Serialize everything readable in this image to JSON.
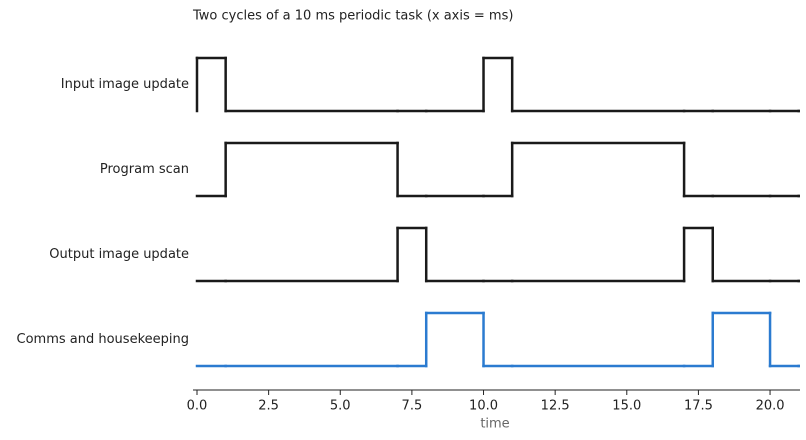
{
  "chart_data": {
    "type": "timing",
    "title": "Two cycles of a 10 ms periodic task (x axis = ms)",
    "x_label": "time",
    "x": [
      0,
      1,
      7,
      8,
      10,
      11,
      17,
      18,
      20,
      21
    ],
    "series": [
      {
        "name": "Input image update",
        "color": "#1a1a1a",
        "values": [
          1,
          0,
          0,
          0,
          1,
          0,
          0,
          0,
          0,
          0
        ]
      },
      {
        "name": "Program scan",
        "color": "#1a1a1a",
        "values": [
          0,
          1,
          0,
          0,
          0,
          1,
          0,
          0,
          0,
          0
        ]
      },
      {
        "name": "Output image update",
        "color": "#1a1a1a",
        "values": [
          0,
          0,
          1,
          0,
          0,
          0,
          1,
          0,
          0,
          0
        ]
      },
      {
        "name": "Comms and housekeeping",
        "color": "#2b7bd0",
        "values": [
          0,
          0,
          0,
          1,
          0,
          0,
          0,
          1,
          0,
          0
        ]
      }
    ],
    "xlim": [
      0,
      21
    ],
    "xticks": [
      {
        "value": 0,
        "label": "0.0"
      },
      2.5,
      {
        "value": 5,
        "label": "5.0"
      },
      7.5,
      {
        "value": 10,
        "label": "10.0"
      },
      12.5,
      {
        "value": 15,
        "label": "15.0"
      },
      17.5,
      {
        "value": 20,
        "label": "20.0"
      }
    ]
  }
}
